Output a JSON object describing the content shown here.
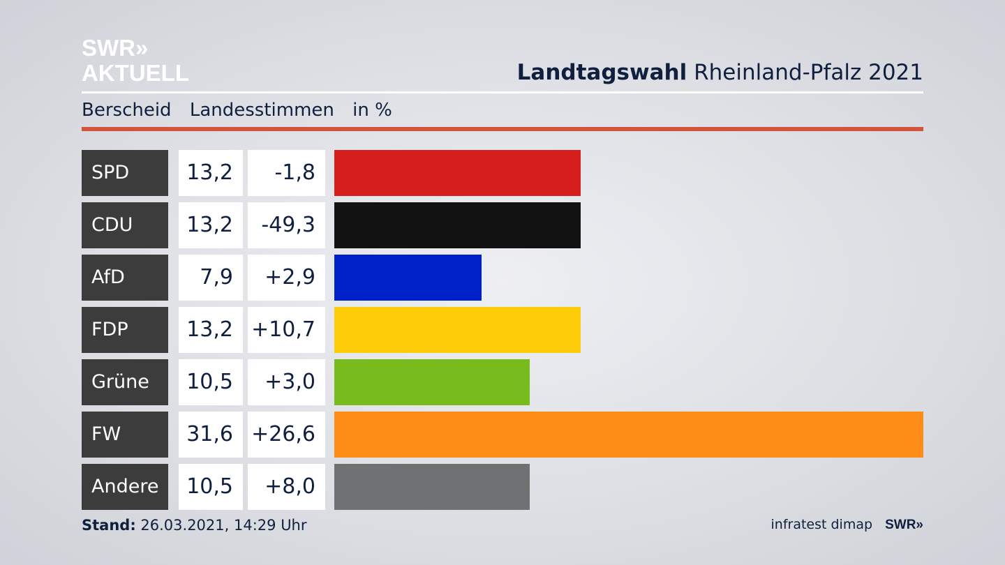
{
  "logo": {
    "line1": "SWR»",
    "line2": "AKTUELL"
  },
  "header": {
    "title_bold": "Landtagswahl",
    "title_rest": "Rheinland-Pfalz 2021"
  },
  "subheader": {
    "place": "Berscheid",
    "vote_type": "Landesstimmen",
    "unit": "in %"
  },
  "footer": {
    "stand_label": "Stand:",
    "stand_value": "26.03.2021, 14:29 Uhr",
    "source": "infratest dimap",
    "swr": "SWR»"
  },
  "chart_data": {
    "type": "bar",
    "orientation": "horizontal",
    "categories": [
      "SPD",
      "CDU",
      "AfD",
      "FDP",
      "Grüne",
      "FW",
      "Andere"
    ],
    "values": [
      13.2,
      13.2,
      7.9,
      13.2,
      10.5,
      31.6,
      10.5
    ],
    "values_label": [
      "13,2",
      "13,2",
      "7,9",
      "13,2",
      "10,5",
      "31,6",
      "10,5"
    ],
    "changes": [
      -1.8,
      -49.3,
      2.9,
      10.7,
      3.0,
      26.6,
      8.0
    ],
    "changes_label": [
      "-1,8",
      "-49,3",
      "+2,9",
      "+10,7",
      "+3,0",
      "+26,6",
      "+8,0"
    ],
    "colors": [
      "#d71f1f",
      "#121212",
      "#0020c8",
      "#fecc09",
      "#78bb1c",
      "#fd8d17",
      "#707173"
    ],
    "xlim": [
      0,
      31.6
    ],
    "grid": false
  }
}
